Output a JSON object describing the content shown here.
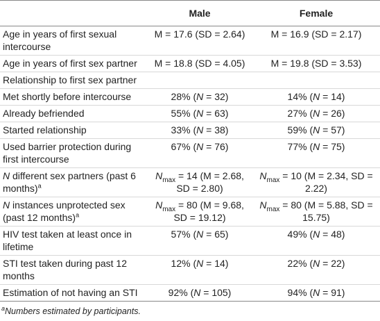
{
  "table": {
    "header": {
      "male": "Male",
      "female": "Female"
    },
    "rows": [
      {
        "label": [
          {
            "text": "Age in years of first sexual intercourse"
          }
        ],
        "male": [
          {
            "text": "M = 17.6 (SD = 2.64)"
          }
        ],
        "female": [
          {
            "text": "M = 16.9 (SD = 2.17)"
          }
        ]
      },
      {
        "label": [
          {
            "text": "Age in years of first sex partner"
          }
        ],
        "male": [
          {
            "text": "M = 18.8 (SD = 4.05)"
          }
        ],
        "female": [
          {
            "text": "M = 19.8 (SD = 3.53)"
          }
        ]
      },
      {
        "label": [
          {
            "text": "Relationship to first sex partner"
          }
        ]
      },
      {
        "label": [
          {
            "text": "Met shortly before intercourse"
          }
        ],
        "male": [
          {
            "text": "28% ("
          },
          {
            "text": "N",
            "style": "i"
          },
          {
            "text": " = 32)"
          }
        ],
        "female": [
          {
            "text": "14% ("
          },
          {
            "text": "N",
            "style": "i"
          },
          {
            "text": " = 14)"
          }
        ]
      },
      {
        "label": [
          {
            "text": "Already befriended"
          }
        ],
        "male": [
          {
            "text": "55% ("
          },
          {
            "text": "N",
            "style": "i"
          },
          {
            "text": " = 63)"
          }
        ],
        "female": [
          {
            "text": "27% ("
          },
          {
            "text": "N",
            "style": "i"
          },
          {
            "text": " = 26)"
          }
        ]
      },
      {
        "label": [
          {
            "text": "Started relationship"
          }
        ],
        "male": [
          {
            "text": "33% ("
          },
          {
            "text": "N",
            "style": "i"
          },
          {
            "text": " = 38)"
          }
        ],
        "female": [
          {
            "text": "59% ("
          },
          {
            "text": "N",
            "style": "i"
          },
          {
            "text": " = 57)"
          }
        ]
      },
      {
        "label": [
          {
            "text": "Used barrier protection during first intercourse"
          }
        ],
        "male": [
          {
            "text": "67% ("
          },
          {
            "text": "N",
            "style": "i"
          },
          {
            "text": " = 76)"
          }
        ],
        "female": [
          {
            "text": "77% ("
          },
          {
            "text": "N",
            "style": "i"
          },
          {
            "text": " = 75)"
          }
        ]
      },
      {
        "label": [
          {
            "text": "N",
            "style": "i"
          },
          {
            "text": " different sex partners (past 6 months)"
          },
          {
            "text": "a",
            "style": "sup"
          }
        ],
        "male": [
          {
            "text": "N",
            "style": "i"
          },
          {
            "text": "max",
            "style": "sub"
          },
          {
            "text": " = 14 (M = 2.68, SD = 2.80)"
          }
        ],
        "female": [
          {
            "text": "N",
            "style": "i"
          },
          {
            "text": "max",
            "style": "sub"
          },
          {
            "text": " = 10 (M = 2.34, SD = 2.22)"
          }
        ]
      },
      {
        "label": [
          {
            "text": "N",
            "style": "i"
          },
          {
            "text": " instances unprotected sex (past 12 months)"
          },
          {
            "text": "a",
            "style": "sup"
          }
        ],
        "male": [
          {
            "text": "N",
            "style": "i"
          },
          {
            "text": "max",
            "style": "sub"
          },
          {
            "text": " = 80 (M = 9.68, SD = 19.12)"
          }
        ],
        "female": [
          {
            "text": "N",
            "style": "i"
          },
          {
            "text": "max",
            "style": "sub"
          },
          {
            "text": " = 80 (M = 5.88, SD = 15.75)"
          }
        ]
      },
      {
        "label": [
          {
            "text": "HIV test taken at least once in lifetime"
          }
        ],
        "male": [
          {
            "text": "57% ("
          },
          {
            "text": "N",
            "style": "i"
          },
          {
            "text": " = 65)"
          }
        ],
        "female": [
          {
            "text": "49% ("
          },
          {
            "text": "N",
            "style": "i"
          },
          {
            "text": " = 48)"
          }
        ]
      },
      {
        "label": [
          {
            "text": "STI test taken during past 12 months"
          }
        ],
        "male": [
          {
            "text": "12% ("
          },
          {
            "text": "N",
            "style": "i"
          },
          {
            "text": " = 14)"
          }
        ],
        "female": [
          {
            "text": "22% ("
          },
          {
            "text": "N",
            "style": "i"
          },
          {
            "text": " = 22)"
          }
        ]
      },
      {
        "label": [
          {
            "text": "Estimation of not having an STI"
          }
        ],
        "male": [
          {
            "text": "92% ("
          },
          {
            "text": "N",
            "style": "i"
          },
          {
            "text": " = 105)"
          }
        ],
        "female": [
          {
            "text": "94% ("
          },
          {
            "text": "N",
            "style": "i"
          },
          {
            "text": " = 91)"
          }
        ]
      }
    ],
    "footnote": [
      {
        "text": "a",
        "style": "sup"
      },
      {
        "text": "Numbers estimated by participants."
      }
    ]
  }
}
